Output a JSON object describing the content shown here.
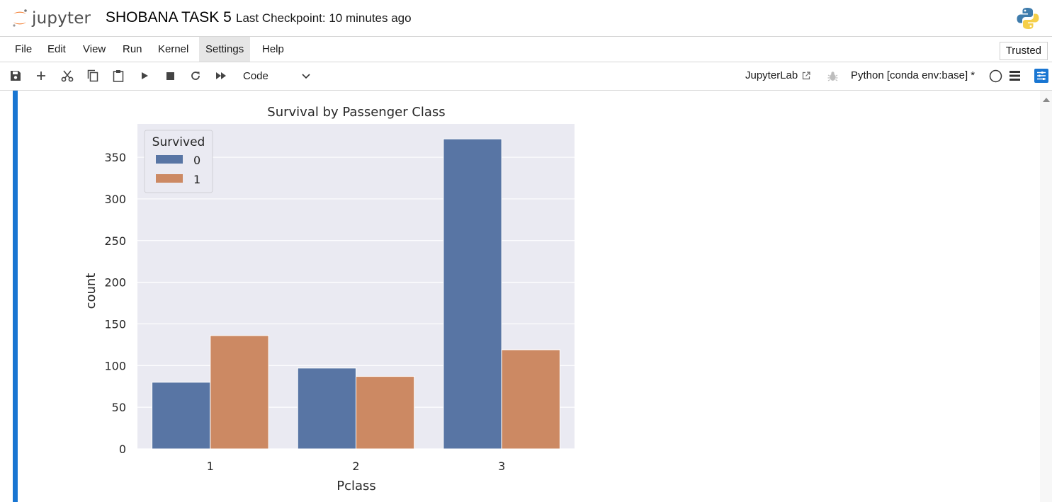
{
  "header": {
    "logo_text": "jupyter",
    "notebook_title": "SHOBANA TASK 5",
    "checkpoint": "Last Checkpoint: 10 minutes ago"
  },
  "menu": {
    "items": [
      "File",
      "Edit",
      "View",
      "Run",
      "Kernel",
      "Settings",
      "Help"
    ],
    "active": "Settings",
    "trusted": "Trusted"
  },
  "toolbar": {
    "icons": [
      "save-icon",
      "add-icon",
      "cut-icon",
      "copy-icon",
      "paste-icon",
      "run-icon",
      "stop-icon",
      "restart-icon",
      "fast-forward-icon"
    ],
    "cell_type": "Code",
    "jupyterlab_link": "JupyterLab",
    "kernel": "Python [conda env:base] *"
  },
  "colors": {
    "cell_bar": "#1976d2",
    "series_0": "#5875a4",
    "series_1": "#cc8963",
    "plot_bg": "#eaeaf2"
  },
  "chart_data": {
    "type": "bar",
    "title": "Survival by Passenger Class",
    "xlabel": "Pclass",
    "ylabel": "count",
    "categories": [
      "1",
      "2",
      "3"
    ],
    "series": [
      {
        "name": "0",
        "values": [
          80,
          97,
          372
        ]
      },
      {
        "name": "1",
        "values": [
          136,
          87,
          119
        ]
      }
    ],
    "legend_title": "Survived",
    "legend_position": "top-left",
    "ylim": [
      0,
      390
    ],
    "yticks": [
      0,
      50,
      100,
      150,
      200,
      250,
      300,
      350
    ],
    "grid": true
  }
}
